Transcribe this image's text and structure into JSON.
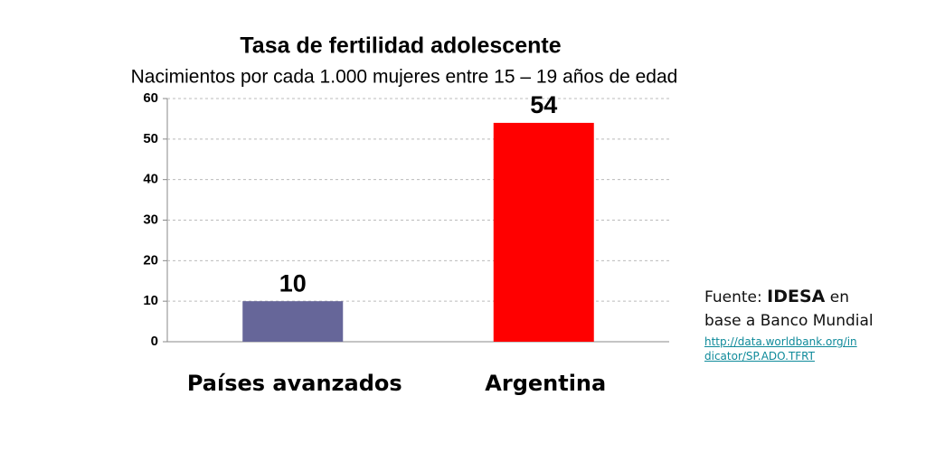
{
  "chart_data": {
    "type": "bar",
    "title": "Tasa de fertilidad adolescente",
    "subtitle": "Nacimientos por cada 1.000 mujeres entre 15 – 19 años de edad",
    "categories": [
      "Países avanzados",
      "Argentina"
    ],
    "values": [
      10,
      54
    ],
    "colors": [
      "#666699",
      "#ff0000"
    ],
    "ylim": [
      0,
      60
    ],
    "yticks": [
      0,
      10,
      20,
      30,
      40,
      50,
      60
    ],
    "grid": true,
    "source": {
      "prefix": "Fuente:",
      "org": "IDESA",
      "suffix": "en base a Banco Mundial",
      "link": "http://data.worldbank.org/indicator/SP.ADO.TFRT"
    }
  }
}
